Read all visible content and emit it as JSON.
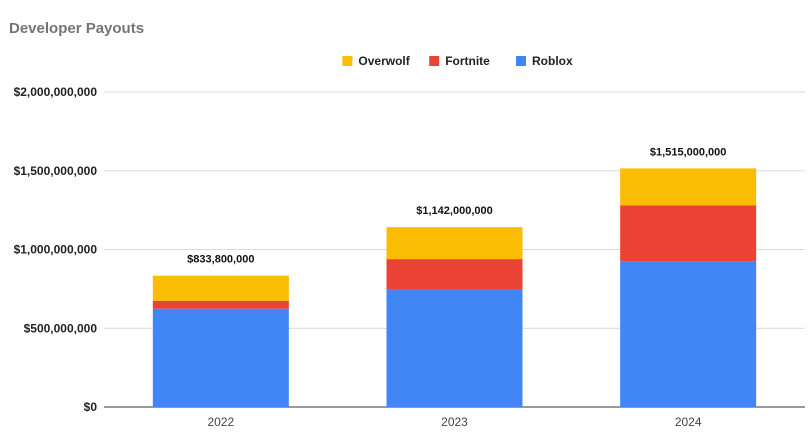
{
  "chart_data": {
    "type": "bar",
    "stacked": true,
    "title": "Developer Payouts",
    "categories": [
      "2022",
      "2023",
      "2024"
    ],
    "series": [
      {
        "name": "Roblox",
        "color": "#4285f4",
        "values": [
          624000000,
          749000000,
          925000000
        ]
      },
      {
        "name": "Fortnite",
        "color": "#ea4335",
        "values": [
          50000000,
          190000000,
          355000000
        ]
      },
      {
        "name": "Overwolf",
        "color": "#fbbc04",
        "values": [
          159800000,
          203000000,
          235000000
        ]
      }
    ],
    "legend_order": [
      "Overwolf",
      "Fortnite",
      "Roblox"
    ],
    "legend_position": "top",
    "totals": [
      "$833,800,000",
      "$1,142,000,000",
      "$1,515,000,000"
    ],
    "ylim": [
      0,
      2000000000
    ],
    "yticks": [
      0,
      500000000,
      1000000000,
      1500000000,
      2000000000
    ],
    "ytick_labels": [
      "$0",
      "$500,000,000",
      "$1,000,000,000",
      "$1,500,000,000",
      "$2,000,000,000"
    ],
    "grid": true
  }
}
